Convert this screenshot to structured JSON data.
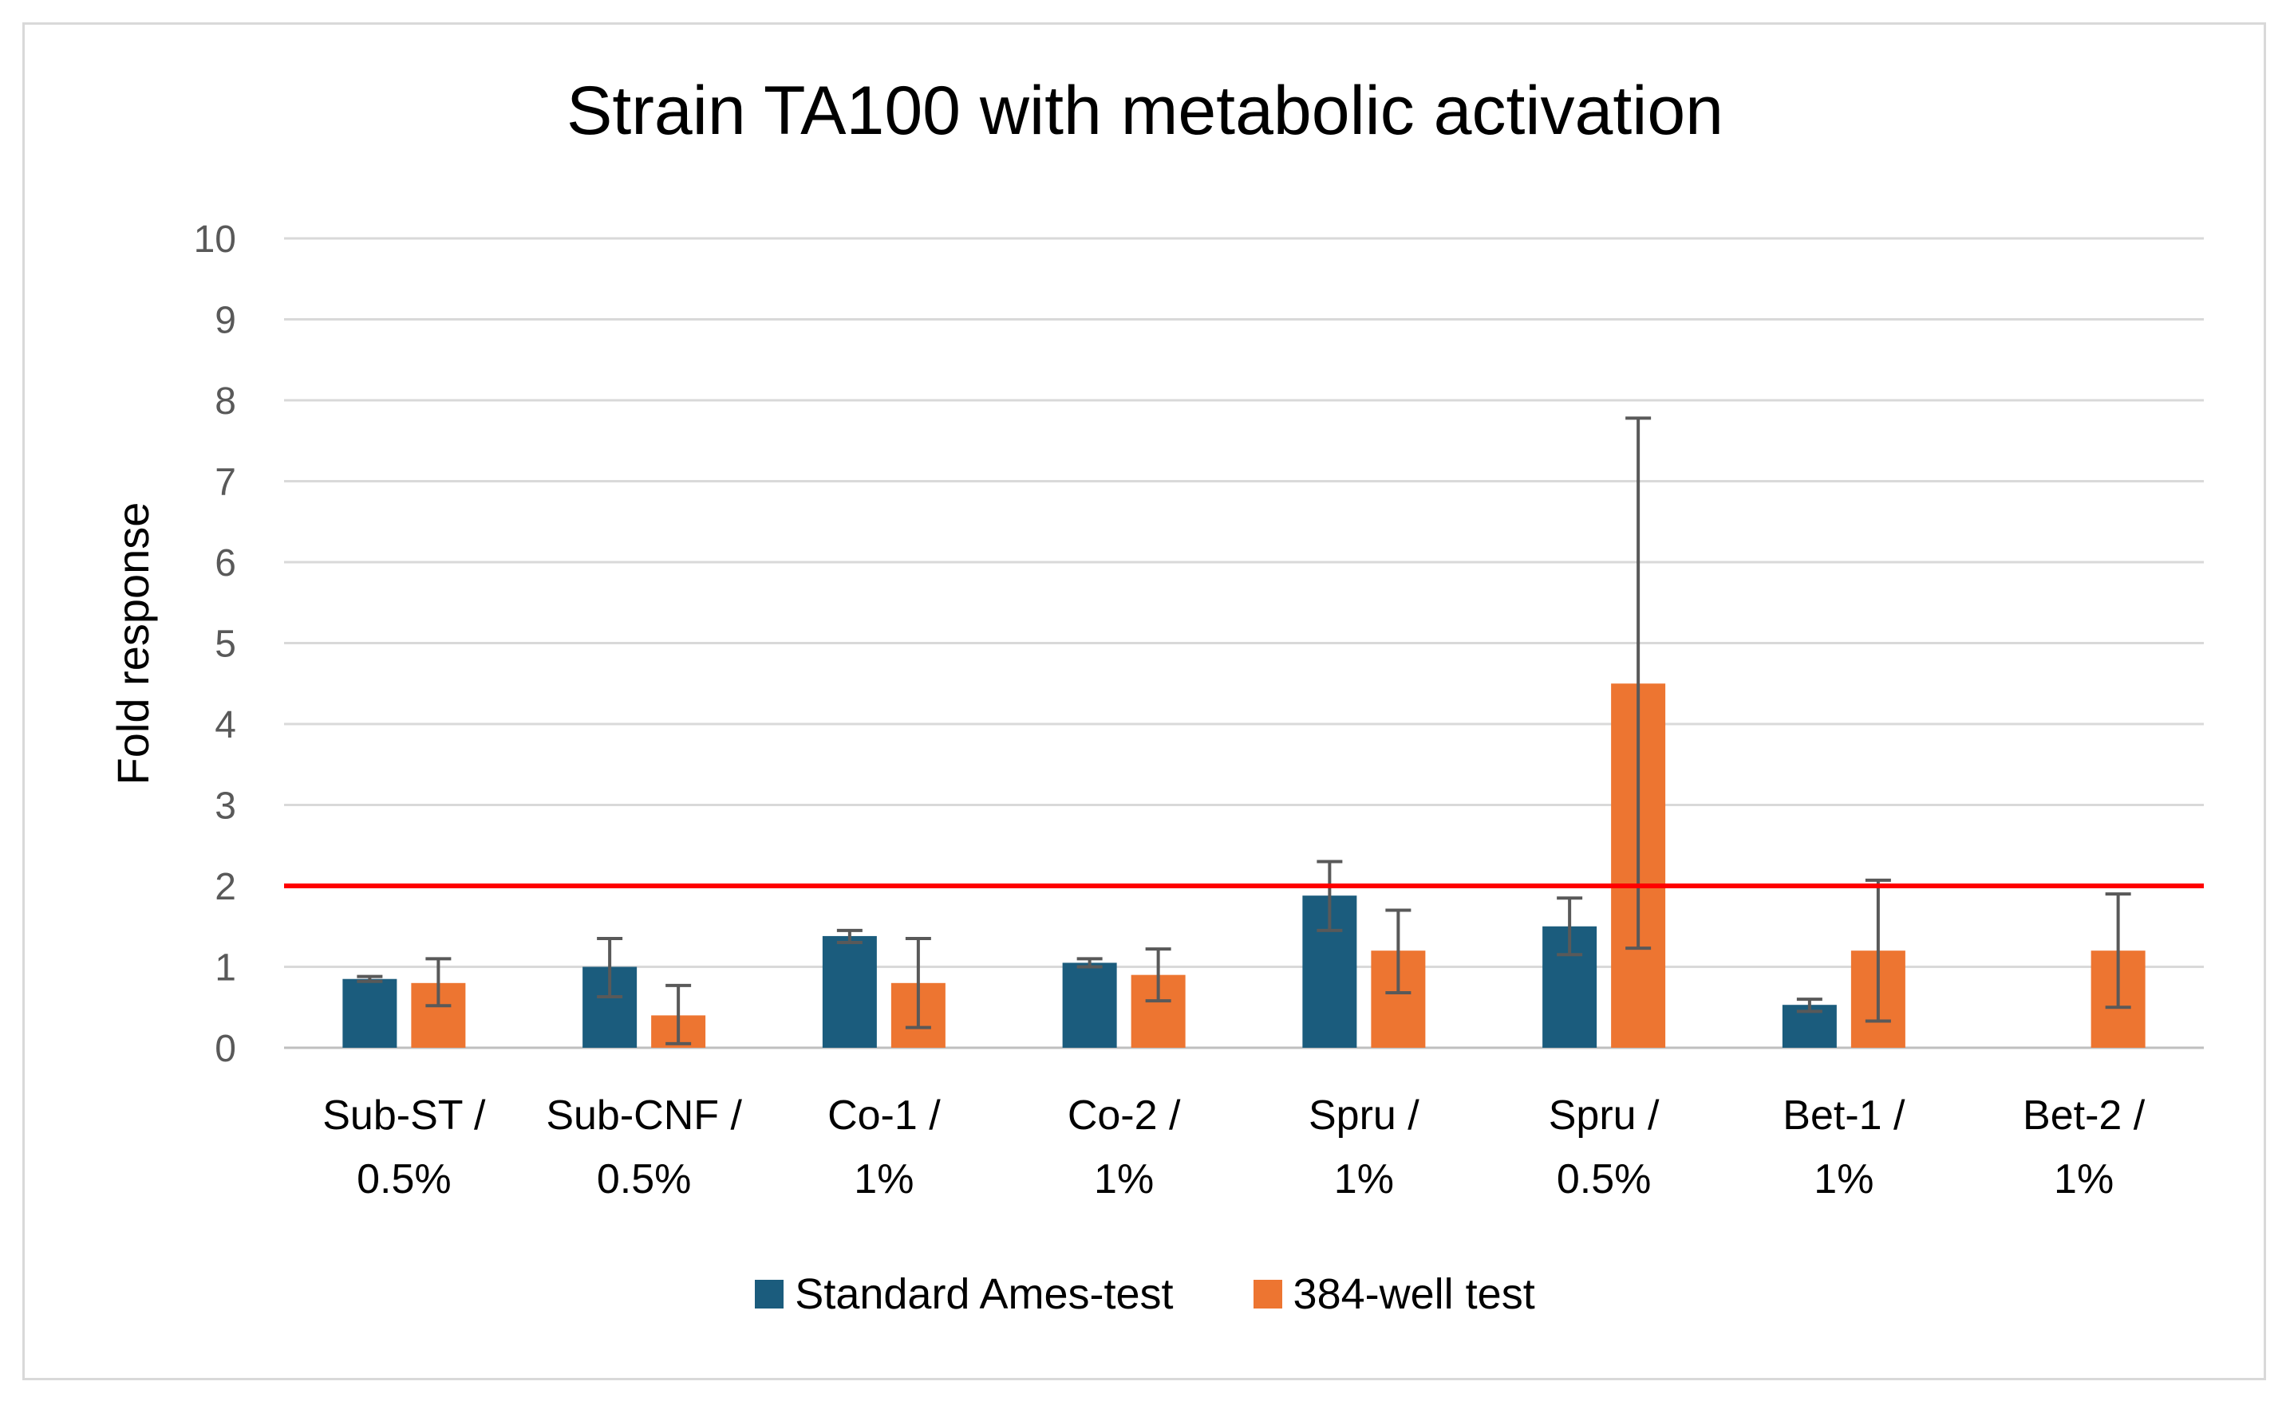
{
  "chart_data": {
    "type": "bar",
    "title": "Strain TA100 with metabolic activation",
    "ylabel": "Fold response",
    "xlabel": "",
    "ylim": [
      0,
      10
    ],
    "yticks": [
      0,
      1,
      2,
      3,
      4,
      5,
      6,
      7,
      8,
      9,
      10
    ],
    "grid": true,
    "legend_position": "bottom",
    "categories": [
      [
        "Sub-ST /",
        "0.5%"
      ],
      [
        "Sub-CNF /",
        "0.5%"
      ],
      [
        "Co-1 /",
        "1%"
      ],
      [
        "Co-2 /",
        "1%"
      ],
      [
        "Spru /",
        "1%"
      ],
      [
        "Spru /",
        "0.5%"
      ],
      [
        "Bet-1 /",
        "1%"
      ],
      [
        "Bet-2 /",
        "1%"
      ]
    ],
    "series": [
      {
        "name": "Standard Ames-test",
        "color": "#1b5c7d",
        "values": [
          0.85,
          1.0,
          1.38,
          1.05,
          1.88,
          1.5,
          0.53,
          null
        ],
        "error": [
          [
            0.82,
            0.88
          ],
          [
            0.63,
            1.35
          ],
          [
            1.3,
            1.45
          ],
          [
            1.0,
            1.1
          ],
          [
            1.45,
            2.3
          ],
          [
            1.15,
            1.85
          ],
          [
            0.45,
            0.6
          ],
          null
        ]
      },
      {
        "name": "384-well test",
        "color": "#ed7531",
        "values": [
          0.8,
          0.4,
          0.8,
          0.9,
          1.2,
          4.5,
          1.2,
          1.2
        ],
        "error": [
          [
            0.52,
            1.1
          ],
          [
            0.05,
            0.77
          ],
          [
            0.25,
            1.35
          ],
          [
            0.58,
            1.22
          ],
          [
            0.68,
            1.7
          ],
          [
            1.23,
            7.78
          ],
          [
            0.33,
            2.07
          ],
          [
            0.5,
            1.9
          ]
        ]
      }
    ],
    "reference_line": {
      "value": 2,
      "color": "#ff0000"
    }
  }
}
